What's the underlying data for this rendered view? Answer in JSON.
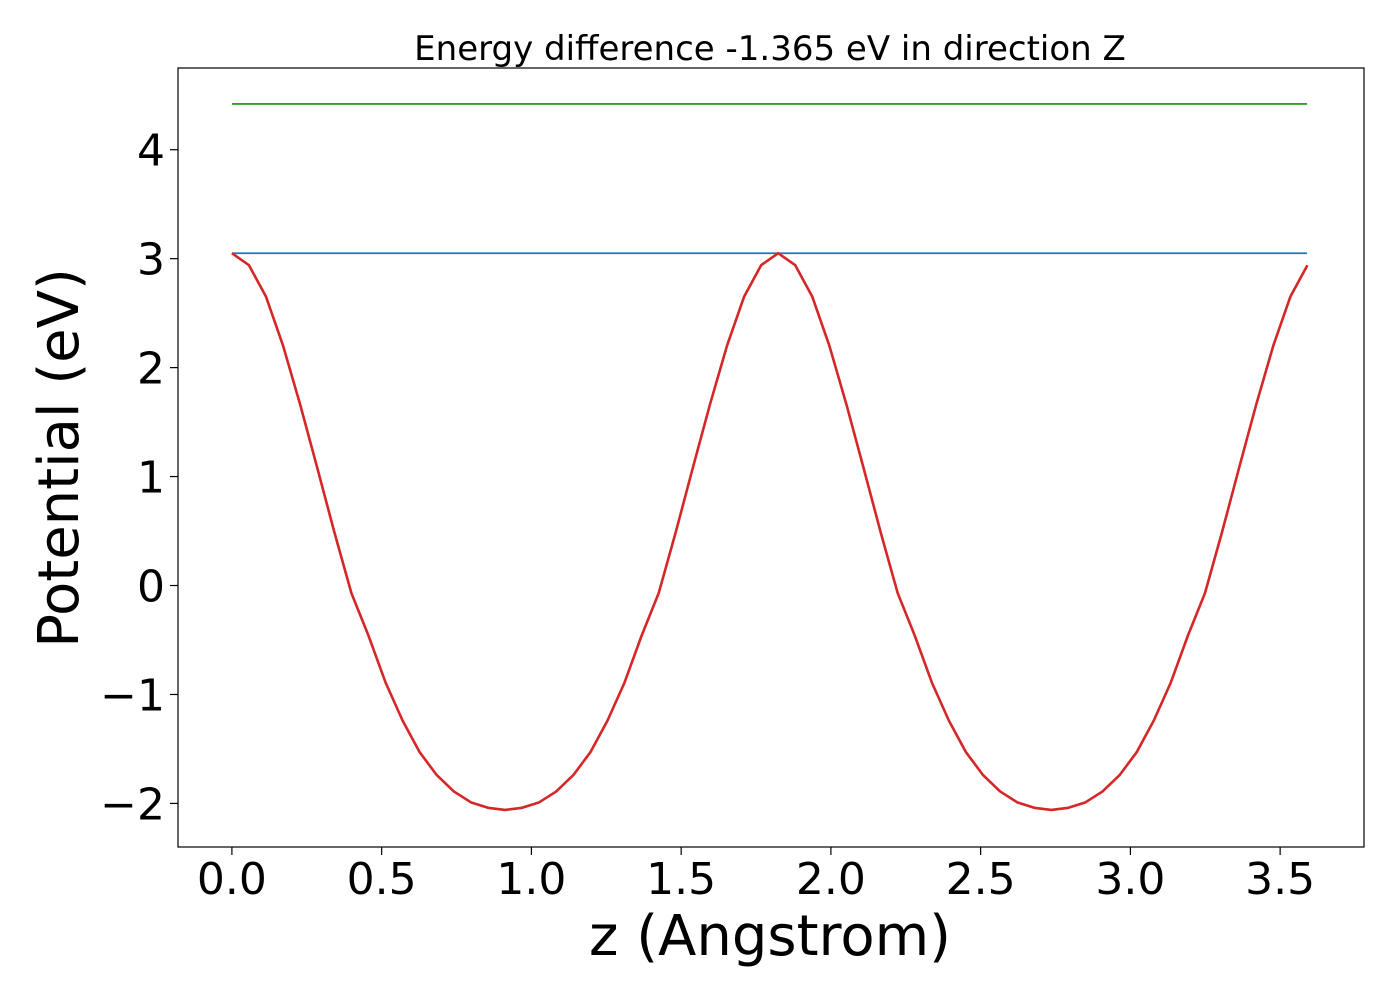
{
  "chart_data": {
    "type": "line",
    "title": "Energy difference -1.365 eV in direction Z",
    "xlabel": "z (Angstrom)",
    "ylabel": "Potential (eV)",
    "xlim": [
      -0.18,
      3.78
    ],
    "ylim": [
      -2.4,
      4.75
    ],
    "xticks": [
      0.0,
      0.5,
      1.0,
      1.5,
      2.0,
      2.5,
      3.0,
      3.5
    ],
    "xtick_labels": [
      "0.0",
      "0.5",
      "1.0",
      "1.5",
      "2.0",
      "2.5",
      "3.0",
      "3.5"
    ],
    "yticks": [
      -2,
      -1,
      0,
      1,
      2,
      3,
      4
    ],
    "ytick_labels": [
      "−2",
      "−1",
      "0",
      "1",
      "2",
      "3",
      "4"
    ],
    "grid": false,
    "series": [
      {
        "color": "#2ca02c",
        "x": [
          0.0,
          3.59
        ],
        "y": [
          4.42,
          4.42
        ]
      },
      {
        "color": "#1f77b4",
        "x": [
          0.0,
          3.59
        ],
        "y": [
          3.05,
          3.05
        ]
      },
      {
        "color": "#d62728",
        "x": [
          0.0,
          0.057,
          0.114,
          0.171,
          0.228,
          0.285,
          0.342,
          0.399,
          0.456,
          0.513,
          0.57,
          0.627,
          0.684,
          0.741,
          0.798,
          0.855,
          0.912,
          0.969,
          1.026,
          1.083,
          1.14,
          1.197,
          1.254,
          1.311,
          1.368,
          1.425,
          1.482,
          1.539,
          1.596,
          1.653,
          1.71,
          1.767,
          1.824,
          1.881,
          1.938,
          1.995,
          2.052,
          2.109,
          2.166,
          2.223,
          2.28,
          2.337,
          2.394,
          2.451,
          2.508,
          2.565,
          2.622,
          2.679,
          2.736,
          2.793,
          2.85,
          2.907,
          2.964,
          3.021,
          3.078,
          3.135,
          3.192,
          3.249,
          3.306,
          3.363,
          3.42,
          3.477,
          3.534,
          3.591
        ],
        "y": [
          3.05,
          2.94,
          2.65,
          2.2,
          1.66,
          1.08,
          0.49,
          -0.07,
          -0.46,
          -0.89,
          -1.24,
          -1.53,
          -1.74,
          -1.89,
          -1.99,
          -2.04,
          -2.06,
          -2.04,
          -1.99,
          -1.89,
          -1.74,
          -1.53,
          -1.24,
          -0.89,
          -0.46,
          -0.07,
          0.49,
          1.08,
          1.66,
          2.2,
          2.65,
          2.94,
          3.05,
          2.94,
          2.65,
          2.2,
          1.66,
          1.08,
          0.49,
          -0.07,
          -0.46,
          -0.89,
          -1.24,
          -1.53,
          -1.74,
          -1.89,
          -1.99,
          -2.04,
          -2.06,
          -2.04,
          -1.99,
          -1.89,
          -1.74,
          -1.53,
          -1.24,
          -0.89,
          -0.46,
          -0.07,
          0.49,
          1.08,
          1.66,
          2.2,
          2.65,
          2.94
        ]
      }
    ]
  }
}
